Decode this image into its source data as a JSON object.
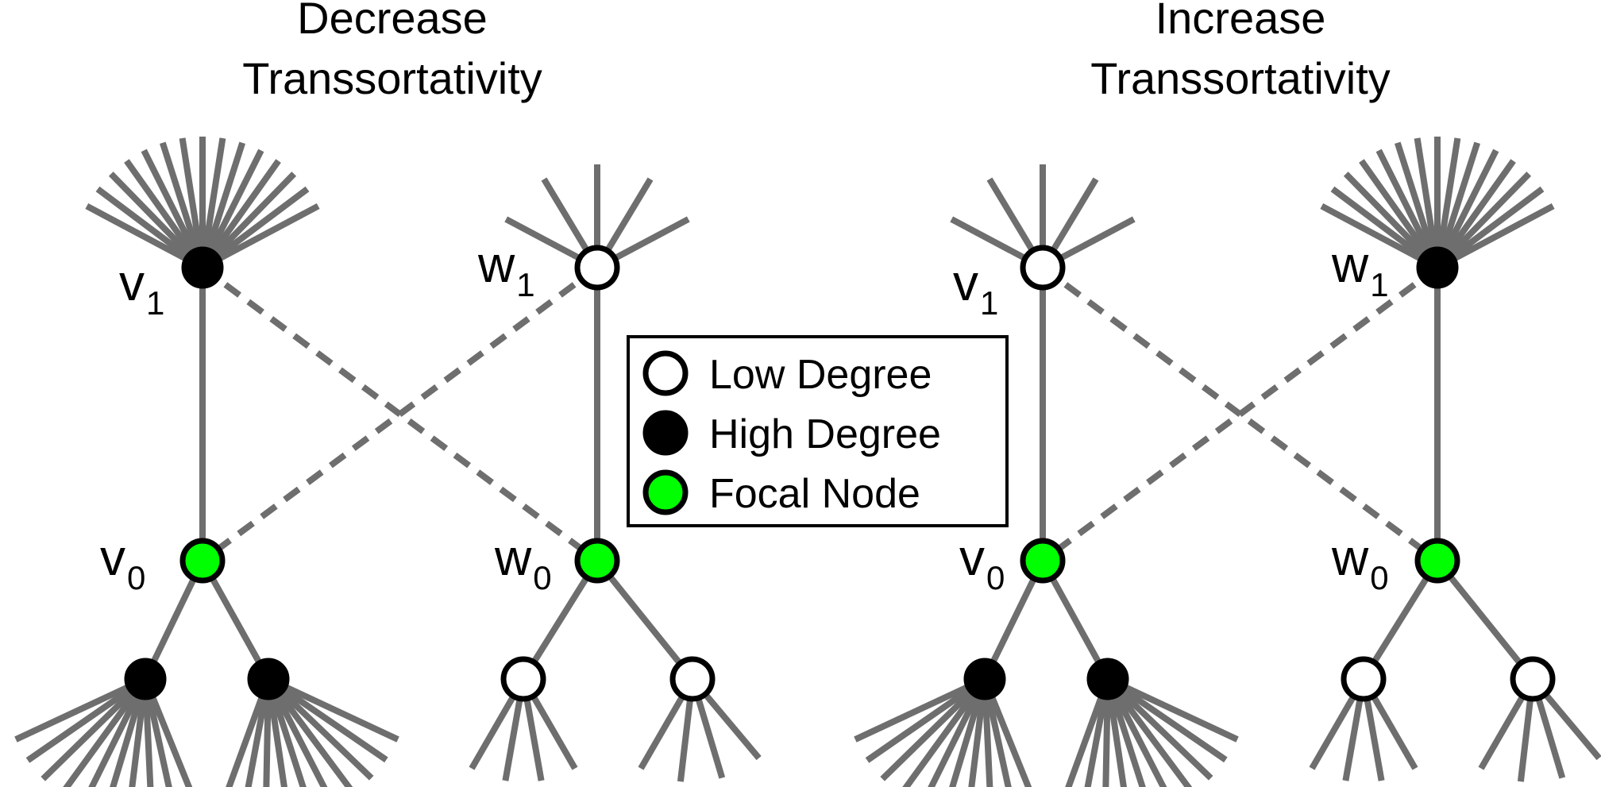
{
  "titles": {
    "left": {
      "line1": "Decrease",
      "line2": "Transsortativity"
    },
    "right": {
      "line1": "Increase",
      "line2": "Transsortativity"
    }
  },
  "labels": {
    "v": "v",
    "w": "w",
    "sub0": "0",
    "sub1": "1"
  },
  "legend": {
    "items": [
      {
        "label": "Low Degree",
        "fill": "#ffffff"
      },
      {
        "label": "High Degree",
        "fill": "#000000"
      },
      {
        "label": "Focal Node",
        "fill": "#00ff00"
      }
    ]
  },
  "colors": {
    "edge": "#6e6e6e",
    "low_degree": "#ffffff",
    "high_degree": "#000000",
    "focal": "#00ff00"
  }
}
